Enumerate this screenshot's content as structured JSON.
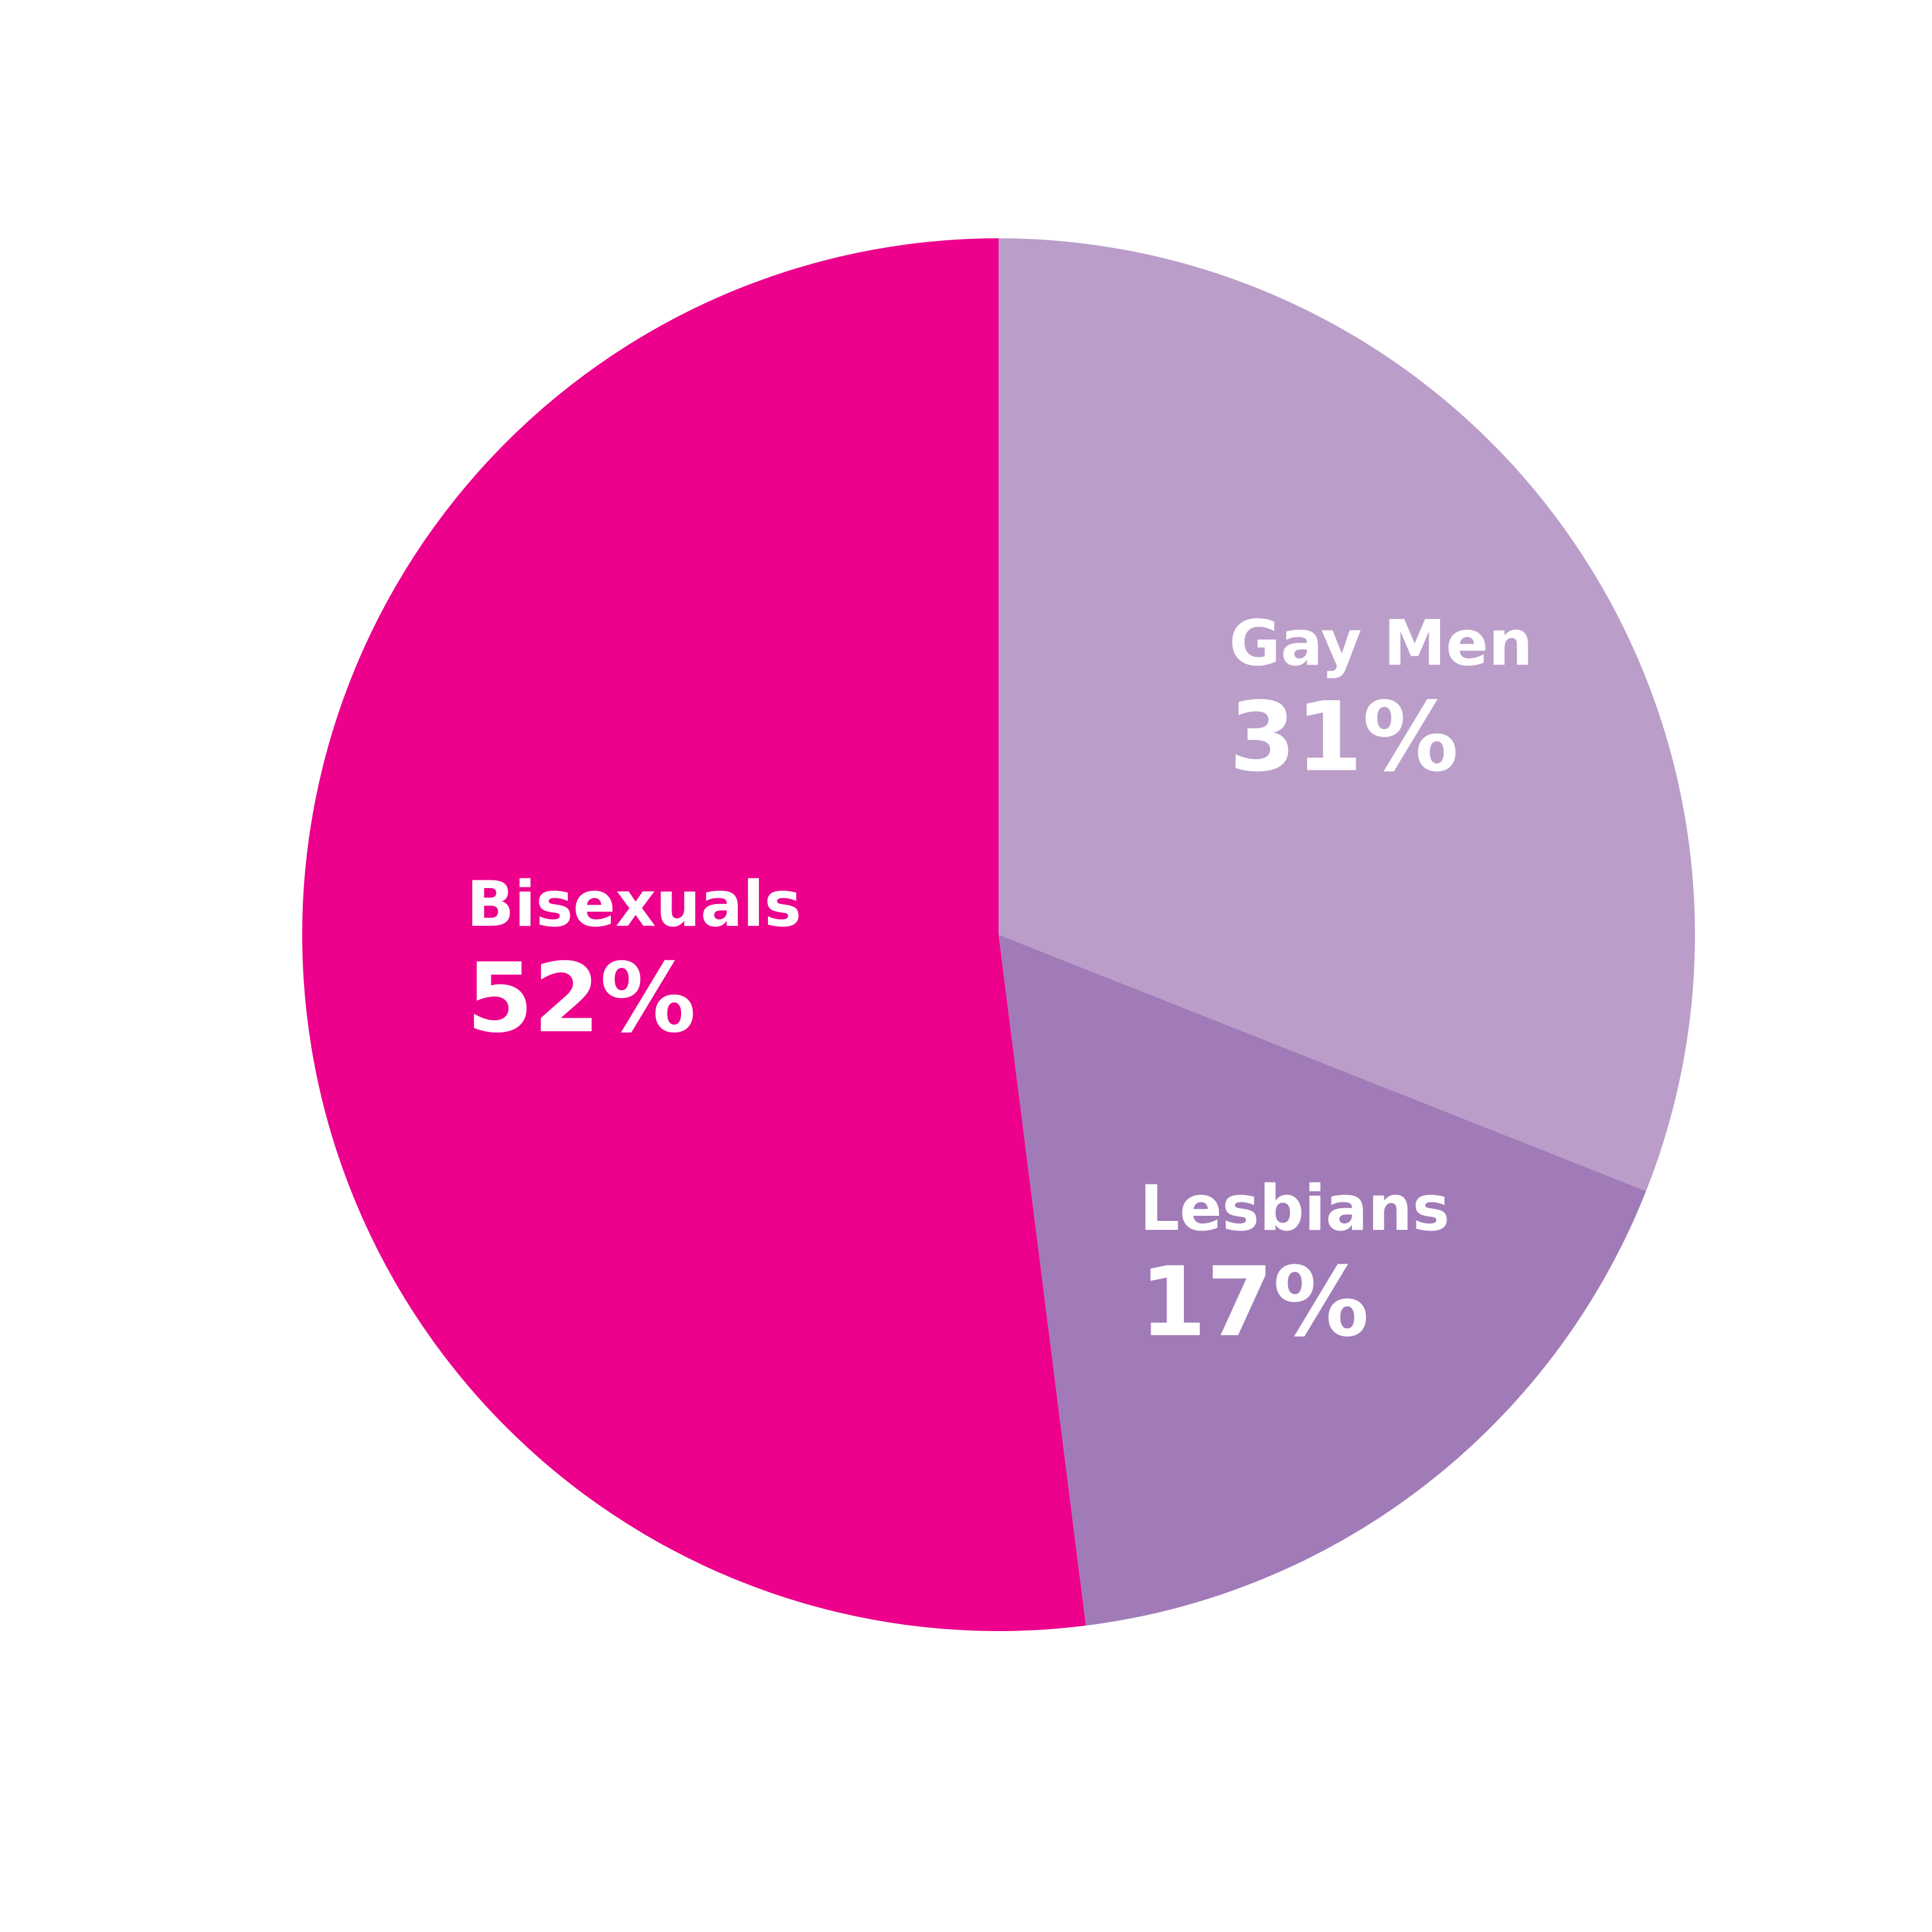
{
  "chart_data": {
    "type": "pie",
    "title": "",
    "start_angle_deg": 0,
    "direction": "clockwise",
    "legend": "none",
    "slices": [
      {
        "label": "Gay Men",
        "value": 31,
        "value_label": "31%",
        "color": "#BA9EC9"
      },
      {
        "label": "Lesbians",
        "value": 17,
        "value_label": "17%",
        "color": "#A17BB7"
      },
      {
        "label": "Bisexuals",
        "value": 52,
        "value_label": "52%",
        "color": "#EC008C"
      }
    ]
  }
}
